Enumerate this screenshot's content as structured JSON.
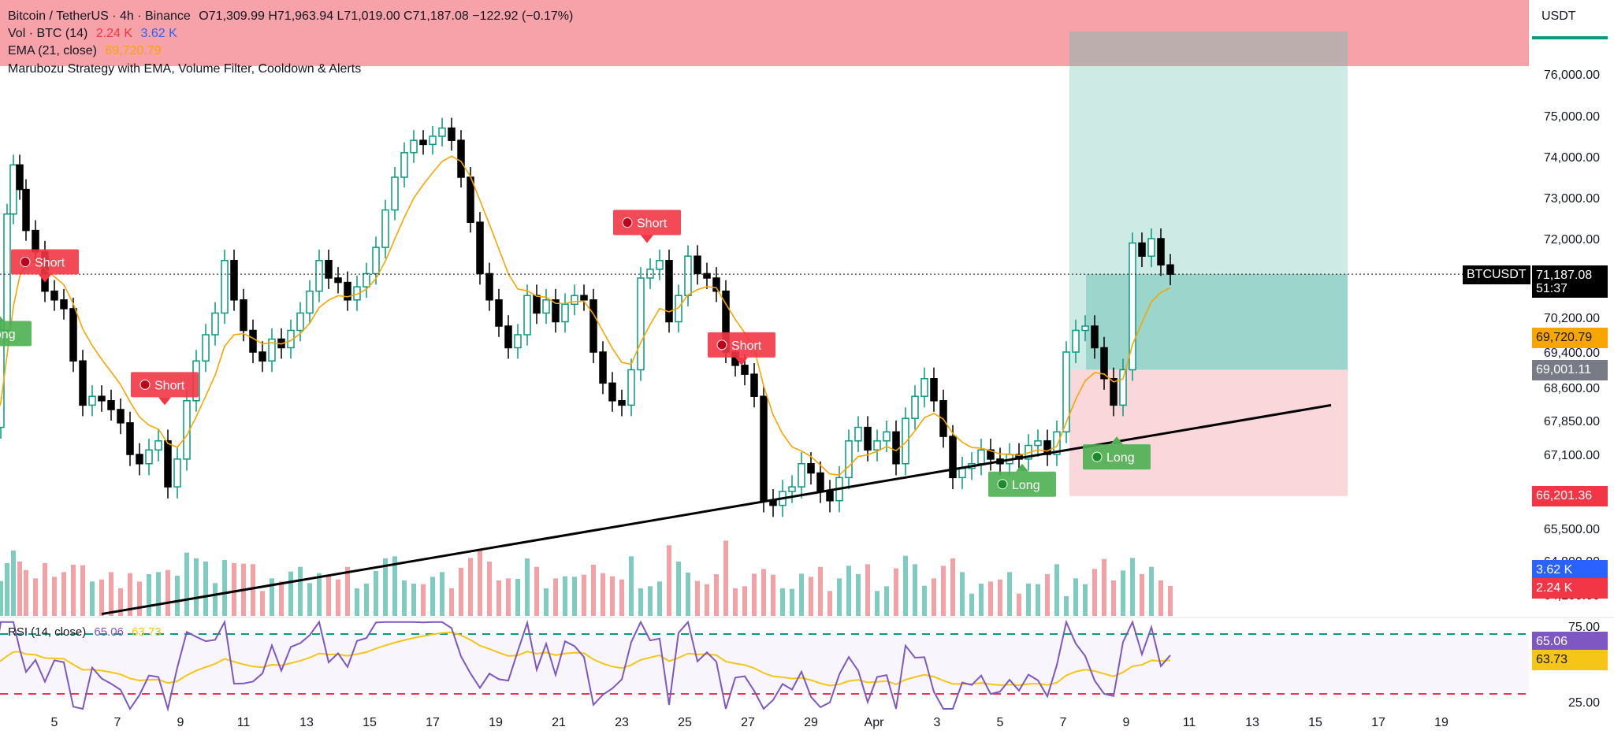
{
  "header": {
    "symbol_title": "Bitcoin / TetherUS · 4h · Binance",
    "ohlc": "O71,309.99  H71,963.94  L71,019.00  C71,187.08  −122.92 (−0.17%)",
    "vol_label": "Vol · BTC (14)",
    "vol_value_1": "2.24 K",
    "vol_value_2": "3.62 K",
    "ema_label": "EMA (21, close)",
    "ema_value": "69,720.79",
    "strategy_label": "Marubozu Strategy with EMA, Volume Filter, Cooldown & Alerts",
    "rsi_label": "RSI (14, close)",
    "rsi_value": "65.06",
    "rsi_ma_value": "63.73"
  },
  "currency_tab": "USDT",
  "symbol_badge": "BTCUSDT",
  "last_price_label": "71,187.08",
  "countdown": "51:37",
  "ema_price_label": "69,720.79",
  "entry_price_label": "69,001.11",
  "stop_price_label": "66,201.36",
  "vol_badge_1": "3.62 K",
  "vol_badge_2": "2.24 K",
  "rsi_badge": "65.06",
  "rsi_ma_badge": "63.73",
  "colors": {
    "up": "#089981",
    "down": "#000000",
    "vol_up": "#7fcbbf",
    "vol_down": "#f2a1a6",
    "ema": "#f7a600",
    "vol_ma": "#2962ff",
    "rsi": "#7e57c2",
    "rsi_ma": "#f5c518",
    "long_tag": "#4caf50",
    "short_tag": "#f23645",
    "target_zone": "#b2dfd5",
    "stop_zone": "#f8c9cf",
    "top_band": "#f7a1a8"
  },
  "chart_data": {
    "type": "candlestick",
    "timeframe": "4h",
    "price_axis": {
      "ticks": [
        "76,000.00",
        "75,000.00",
        "74,000.00",
        "73,000.00",
        "72,000.00",
        "70,200.00",
        "69,400.00",
        "68,600.00",
        "67,850.00",
        "67,100.00",
        "65,500.00",
        "64,800.00",
        "64,100.00"
      ],
      "tick_values": [
        76000,
        75000,
        74000,
        73000,
        72000,
        70200,
        69400,
        68600,
        67850,
        67100,
        65500,
        64800,
        64100
      ]
    },
    "date_axis": {
      "labels": [
        "5",
        "7",
        "9",
        "11",
        "13",
        "15",
        "17",
        "19",
        "21",
        "23",
        "25",
        "27",
        "29",
        "Apr",
        "3",
        "5",
        "7",
        "9",
        "11",
        "13",
        "15",
        "17",
        "19"
      ]
    },
    "last_price": 71187.08,
    "ema_last": 69720.79,
    "position": {
      "entry": 69001.11,
      "stop": 66201.36,
      "target_zone_top": 76500
    },
    "signals": [
      {
        "type": "Long",
        "label": "Long",
        "x_day": 3.2,
        "price": 70300
      },
      {
        "type": "Short",
        "label": "Short",
        "x_day": 4.7,
        "price": 71000
      },
      {
        "type": "Short",
        "label": "Short",
        "x_day": 8.5,
        "price": 68200
      },
      {
        "type": "Short",
        "label": "Short",
        "x_day": 23.8,
        "price": 71900
      },
      {
        "type": "Short",
        "label": "Short",
        "x_day": 26.8,
        "price": 69100
      },
      {
        "type": "Long",
        "label": "Long",
        "x_day": 35.7,
        "price": 66900
      },
      {
        "type": "Long",
        "label": "Long",
        "x_day": 38.7,
        "price": 67500
      }
    ],
    "trendline": {
      "from": {
        "x_day": 6.5,
        "price": 63700
      },
      "to": {
        "x_day": 45.5,
        "price": 68200
      }
    },
    "rsi_axis": {
      "ticks": [
        "75.00",
        "25.00"
      ],
      "levels": [
        70,
        30
      ]
    },
    "close_path": [
      [
        3.0,
        67700
      ],
      [
        3.3,
        69900
      ],
      [
        3.5,
        72600
      ],
      [
        3.7,
        73800
      ],
      [
        3.9,
        73200
      ],
      [
        4.1,
        72200
      ],
      [
        4.4,
        71700
      ],
      [
        4.7,
        70800
      ],
      [
        5.0,
        70600
      ],
      [
        5.3,
        70400
      ],
      [
        5.6,
        69200
      ],
      [
        5.9,
        68200
      ],
      [
        6.2,
        68400
      ],
      [
        6.5,
        68300
      ],
      [
        6.8,
        68100
      ],
      [
        7.1,
        67800
      ],
      [
        7.4,
        67100
      ],
      [
        7.7,
        66900
      ],
      [
        8.0,
        67200
      ],
      [
        8.3,
        67400
      ],
      [
        8.6,
        66400
      ],
      [
        8.9,
        67000
      ],
      [
        9.2,
        68300
      ],
      [
        9.5,
        69200
      ],
      [
        9.8,
        69800
      ],
      [
        10.1,
        70300
      ],
      [
        10.4,
        71500
      ],
      [
        10.7,
        70600
      ],
      [
        11.0,
        69900
      ],
      [
        11.3,
        69400
      ],
      [
        11.6,
        69200
      ],
      [
        11.9,
        69700
      ],
      [
        12.2,
        69500
      ],
      [
        12.5,
        69900
      ],
      [
        12.8,
        70300
      ],
      [
        13.1,
        70800
      ],
      [
        13.4,
        71500
      ],
      [
        13.7,
        71100
      ],
      [
        14.0,
        71000
      ],
      [
        14.3,
        70600
      ],
      [
        14.6,
        70900
      ],
      [
        14.9,
        71200
      ],
      [
        15.2,
        71800
      ],
      [
        15.5,
        72700
      ],
      [
        15.8,
        73500
      ],
      [
        16.1,
        74100
      ],
      [
        16.4,
        74400
      ],
      [
        16.7,
        74300
      ],
      [
        17.0,
        74500
      ],
      [
        17.3,
        74700
      ],
      [
        17.6,
        74400
      ],
      [
        17.9,
        73500
      ],
      [
        18.2,
        72400
      ],
      [
        18.5,
        71200
      ],
      [
        18.8,
        70600
      ],
      [
        19.1,
        70000
      ],
      [
        19.4,
        69500
      ],
      [
        19.7,
        69800
      ],
      [
        20.0,
        70700
      ],
      [
        20.3,
        70300
      ],
      [
        20.6,
        70600
      ],
      [
        20.9,
        70100
      ],
      [
        21.2,
        70500
      ],
      [
        21.5,
        70700
      ],
      [
        21.8,
        70600
      ],
      [
        22.1,
        69400
      ],
      [
        22.4,
        68700
      ],
      [
        22.7,
        68300
      ],
      [
        23.0,
        68200
      ],
      [
        23.3,
        69000
      ],
      [
        23.6,
        71100
      ],
      [
        23.9,
        71300
      ],
      [
        24.2,
        71500
      ],
      [
        24.5,
        70100
      ],
      [
        24.8,
        70700
      ],
      [
        25.1,
        71600
      ],
      [
        25.4,
        71200
      ],
      [
        25.7,
        71100
      ],
      [
        26.0,
        70800
      ],
      [
        26.3,
        69400
      ],
      [
        26.6,
        69100
      ],
      [
        26.9,
        68900
      ],
      [
        27.2,
        68400
      ],
      [
        27.5,
        66100
      ],
      [
        27.8,
        66000
      ],
      [
        28.1,
        66300
      ],
      [
        28.4,
        66400
      ],
      [
        28.7,
        66900
      ],
      [
        29.0,
        66700
      ],
      [
        29.3,
        66300
      ],
      [
        29.6,
        66100
      ],
      [
        29.9,
        66600
      ],
      [
        30.2,
        67400
      ],
      [
        30.5,
        67700
      ],
      [
        30.8,
        67200
      ],
      [
        31.1,
        67400
      ],
      [
        31.4,
        67600
      ],
      [
        31.7,
        66900
      ],
      [
        32.0,
        67900
      ],
      [
        32.3,
        68400
      ],
      [
        32.6,
        68800
      ],
      [
        32.9,
        68300
      ],
      [
        33.2,
        67500
      ],
      [
        33.5,
        66600
      ],
      [
        33.8,
        66800
      ],
      [
        34.1,
        66900
      ],
      [
        34.4,
        67200
      ],
      [
        34.7,
        67000
      ],
      [
        35.0,
        66900
      ],
      [
        35.3,
        67100
      ],
      [
        35.6,
        67000
      ],
      [
        35.9,
        67300
      ],
      [
        36.2,
        67400
      ],
      [
        36.5,
        67100
      ],
      [
        36.8,
        67600
      ],
      [
        37.1,
        69400
      ],
      [
        37.4,
        69900
      ],
      [
        37.7,
        70000
      ],
      [
        38.0,
        69500
      ],
      [
        38.3,
        68800
      ],
      [
        38.6,
        68200
      ],
      [
        38.9,
        69000
      ],
      [
        39.2,
        71900
      ],
      [
        39.5,
        71600
      ],
      [
        39.8,
        72000
      ],
      [
        40.1,
        71400
      ],
      [
        40.4,
        71187
      ]
    ]
  }
}
